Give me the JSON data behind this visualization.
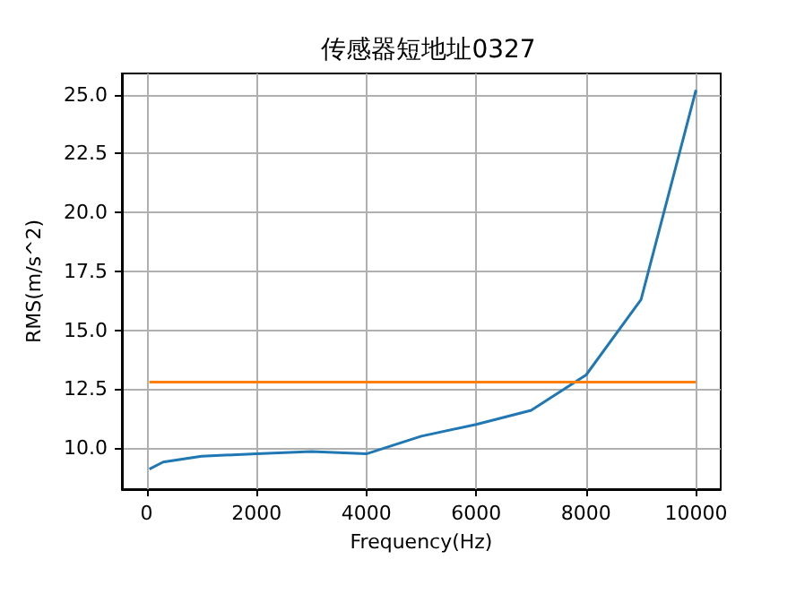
{
  "chart_data": {
    "type": "line",
    "title": "传感器短地址0327",
    "xlabel": "Frequency(Hz)",
    "ylabel": "RMS(m/s^2)",
    "xlim": [
      -450,
      10450
    ],
    "xticks": [
      0,
      2000,
      4000,
      6000,
      8000,
      10000
    ],
    "ylim": [
      8.25,
      25.9
    ],
    "yticks": [
      {
        "value": 10,
        "label": "10.0"
      },
      {
        "value": 12.5,
        "label": "12.5"
      },
      {
        "value": 15,
        "label": "15.0"
      },
      {
        "value": 17.5,
        "label": "17.5"
      },
      {
        "value": 20,
        "label": "20.0"
      },
      {
        "value": 22.5,
        "label": "22.5"
      },
      {
        "value": 25,
        "label": "25.0"
      }
    ],
    "grid": true,
    "series": [
      {
        "color": "#1f77b4",
        "x": [
          50,
          300,
          1000,
          2000,
          3000,
          4000,
          5000,
          6000,
          7000,
          8000,
          9000,
          10000
        ],
        "values": [
          9.1,
          9.4,
          9.65,
          9.75,
          9.85,
          9.75,
          10.5,
          11.0,
          11.6,
          13.1,
          16.3,
          25.2
        ]
      },
      {
        "color": "#ff7f0e",
        "x": [
          50,
          10000
        ],
        "values": [
          12.8,
          12.8
        ]
      }
    ]
  }
}
